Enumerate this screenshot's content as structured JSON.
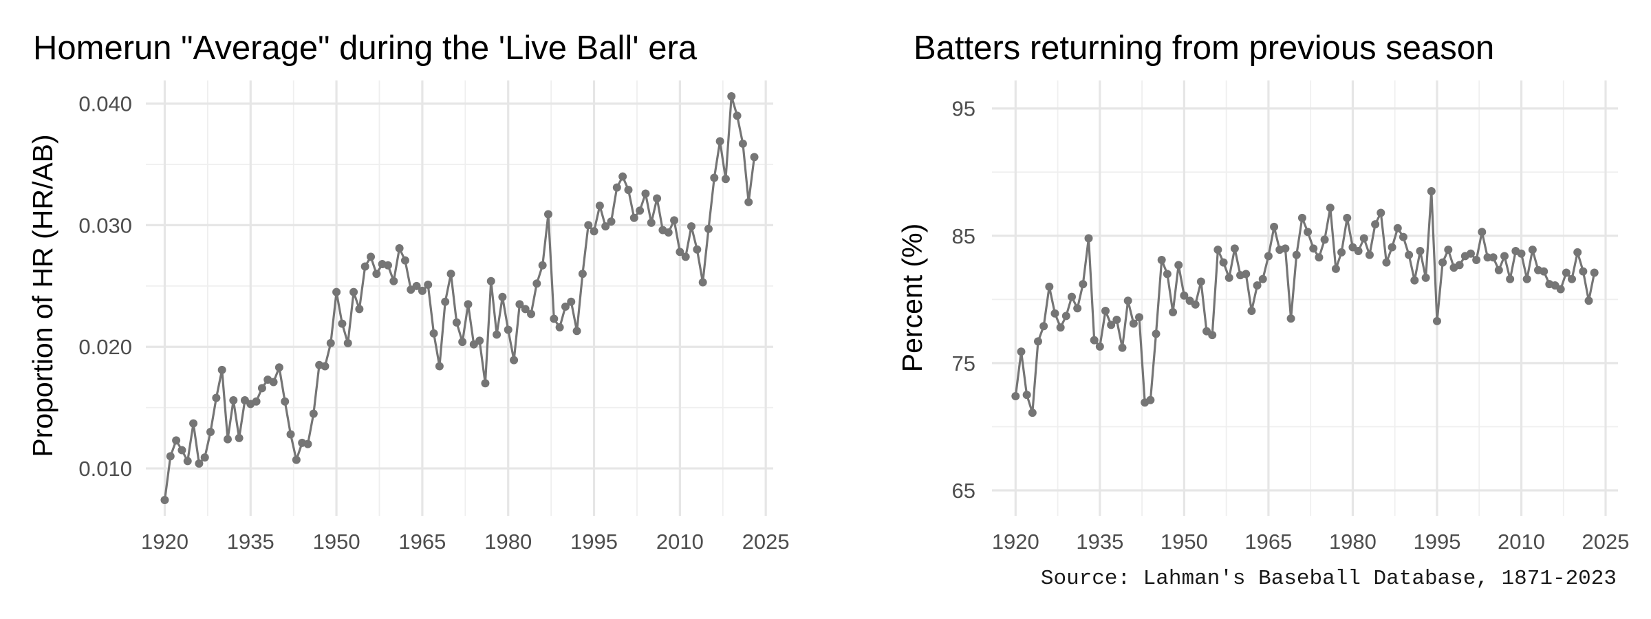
{
  "caption": "Source: Lahman's Baseball Database, 1871-2023",
  "colors": {
    "series": "#757575",
    "grid_major": "#e6e6e6",
    "grid_minor": "#efefef",
    "tick_text": "#4d4d4d"
  },
  "chart_data": [
    {
      "type": "line",
      "title": "Homerun \"Average\" during the 'Live Ball' era",
      "xlabel": "",
      "ylabel": "Proportion of HR (HR/AB)",
      "xlim": [
        1916.7,
        2026.3
      ],
      "ylim": [
        0.0061,
        0.0419
      ],
      "x_ticks": [
        1920,
        1935,
        1950,
        1965,
        1980,
        1995,
        2010,
        2025
      ],
      "x_tick_labels": [
        "1920",
        "1935",
        "1950",
        "1965",
        "1980",
        "1995",
        "2010",
        "2025"
      ],
      "y_ticks": [
        0.01,
        0.02,
        0.03,
        0.04
      ],
      "y_tick_labels": [
        "0.010",
        "0.020",
        "0.030",
        "0.040"
      ],
      "grid": true,
      "markers": true,
      "x": [
        1920,
        1921,
        1922,
        1923,
        1924,
        1925,
        1926,
        1927,
        1928,
        1929,
        1930,
        1931,
        1932,
        1933,
        1934,
        1935,
        1936,
        1937,
        1938,
        1939,
        1940,
        1941,
        1942,
        1943,
        1944,
        1945,
        1946,
        1947,
        1948,
        1949,
        1950,
        1951,
        1952,
        1953,
        1954,
        1955,
        1956,
        1957,
        1958,
        1959,
        1960,
        1961,
        1962,
        1963,
        1964,
        1965,
        1966,
        1967,
        1968,
        1969,
        1970,
        1971,
        1972,
        1973,
        1974,
        1975,
        1976,
        1977,
        1978,
        1979,
        1980,
        1981,
        1982,
        1983,
        1984,
        1985,
        1986,
        1987,
        1988,
        1989,
        1990,
        1991,
        1992,
        1993,
        1994,
        1995,
        1996,
        1997,
        1998,
        1999,
        2000,
        2001,
        2002,
        2003,
        2004,
        2005,
        2006,
        2007,
        2008,
        2009,
        2010,
        2011,
        2012,
        2013,
        2014,
        2015,
        2016,
        2017,
        2018,
        2019,
        2020,
        2021,
        2022,
        2023
      ],
      "y": [
        0.0074,
        0.011,
        0.0123,
        0.0115,
        0.0106,
        0.0137,
        0.0104,
        0.0109,
        0.013,
        0.0158,
        0.0181,
        0.0124,
        0.0156,
        0.0125,
        0.0156,
        0.0153,
        0.0155,
        0.0166,
        0.0173,
        0.0171,
        0.0183,
        0.0155,
        0.0128,
        0.0107,
        0.0121,
        0.012,
        0.0145,
        0.0185,
        0.0184,
        0.0203,
        0.0245,
        0.0219,
        0.0203,
        0.0245,
        0.0231,
        0.0266,
        0.0274,
        0.026,
        0.0268,
        0.0267,
        0.0254,
        0.0281,
        0.0271,
        0.0247,
        0.025,
        0.0246,
        0.0251,
        0.0211,
        0.0184,
        0.0237,
        0.026,
        0.022,
        0.0204,
        0.0235,
        0.0202,
        0.0205,
        0.017,
        0.0254,
        0.021,
        0.0241,
        0.0214,
        0.0189,
        0.0235,
        0.0231,
        0.0227,
        0.0252,
        0.0267,
        0.0309,
        0.0223,
        0.0216,
        0.0233,
        0.0237,
        0.0213,
        0.026,
        0.03,
        0.0295,
        0.0316,
        0.0299,
        0.0303,
        0.0331,
        0.034,
        0.0329,
        0.0306,
        0.0312,
        0.0326,
        0.0302,
        0.0322,
        0.0296,
        0.0294,
        0.0304,
        0.0278,
        0.0274,
        0.0299,
        0.028,
        0.0253,
        0.0297,
        0.0339,
        0.0369,
        0.0338,
        0.0406,
        0.039,
        0.0367,
        0.0319,
        0.0356
      ]
    },
    {
      "type": "line",
      "title": "Batters returning from previous season",
      "xlabel": "",
      "ylabel": "Percent (%)",
      "xlim": [
        1915.8,
        2027.2
      ],
      "ylim": [
        63.0,
        97.2
      ],
      "x_ticks": [
        1920,
        1935,
        1950,
        1965,
        1980,
        1995,
        2010,
        2025
      ],
      "x_tick_labels": [
        "1920",
        "1935",
        "1950",
        "1965",
        "1980",
        "1995",
        "2010",
        "2025"
      ],
      "y_ticks": [
        65,
        75,
        85,
        95
      ],
      "y_tick_labels": [
        "65",
        "75",
        "85",
        "95"
      ],
      "grid": true,
      "markers": true,
      "x": [
        1920,
        1921,
        1922,
        1923,
        1924,
        1925,
        1926,
        1927,
        1928,
        1929,
        1930,
        1931,
        1932,
        1933,
        1934,
        1935,
        1936,
        1937,
        1938,
        1939,
        1940,
        1941,
        1942,
        1943,
        1944,
        1945,
        1946,
        1947,
        1948,
        1949,
        1950,
        1951,
        1952,
        1953,
        1954,
        1955,
        1956,
        1957,
        1958,
        1959,
        1960,
        1961,
        1962,
        1963,
        1964,
        1965,
        1966,
        1967,
        1968,
        1969,
        1970,
        1971,
        1972,
        1973,
        1974,
        1975,
        1976,
        1977,
        1978,
        1979,
        1980,
        1981,
        1982,
        1983,
        1984,
        1985,
        1986,
        1987,
        1988,
        1989,
        1990,
        1991,
        1992,
        1993,
        1994,
        1995,
        1996,
        1997,
        1998,
        1999,
        2000,
        2001,
        2002,
        2003,
        2004,
        2005,
        2006,
        2007,
        2008,
        2009,
        2010,
        2011,
        2012,
        2013,
        2014,
        2015,
        2016,
        2017,
        2018,
        2019,
        2020,
        2021,
        2022,
        2023
      ],
      "y": [
        72.4,
        75.9,
        72.5,
        71.1,
        76.7,
        77.9,
        81.0,
        78.9,
        77.8,
        78.7,
        80.2,
        79.3,
        81.2,
        84.8,
        76.8,
        76.3,
        79.1,
        78.0,
        78.4,
        76.2,
        79.9,
        78.1,
        78.6,
        71.9,
        72.1,
        77.3,
        83.1,
        82.0,
        79.0,
        82.7,
        80.3,
        79.9,
        79.6,
        81.4,
        77.5,
        77.2,
        83.9,
        82.9,
        81.7,
        84.0,
        81.9,
        82.0,
        79.1,
        81.1,
        81.6,
        83.4,
        85.7,
        83.9,
        84.0,
        78.5,
        83.5,
        86.4,
        85.3,
        84.0,
        83.3,
        84.7,
        87.2,
        82.4,
        83.7,
        86.4,
        84.1,
        83.8,
        84.8,
        83.5,
        85.9,
        86.8,
        82.9,
        84.1,
        85.6,
        84.9,
        83.5,
        81.5,
        83.8,
        81.7,
        88.5,
        78.3,
        82.9,
        83.9,
        82.5,
        82.7,
        83.4,
        83.6,
        83.1,
        85.3,
        83.3,
        83.3,
        82.3,
        83.4,
        81.6,
        83.8,
        83.6,
        81.6,
        83.9,
        82.3,
        82.2,
        81.2,
        81.1,
        80.8,
        82.1,
        81.6,
        83.7,
        82.2,
        79.9,
        82.1
      ]
    }
  ]
}
